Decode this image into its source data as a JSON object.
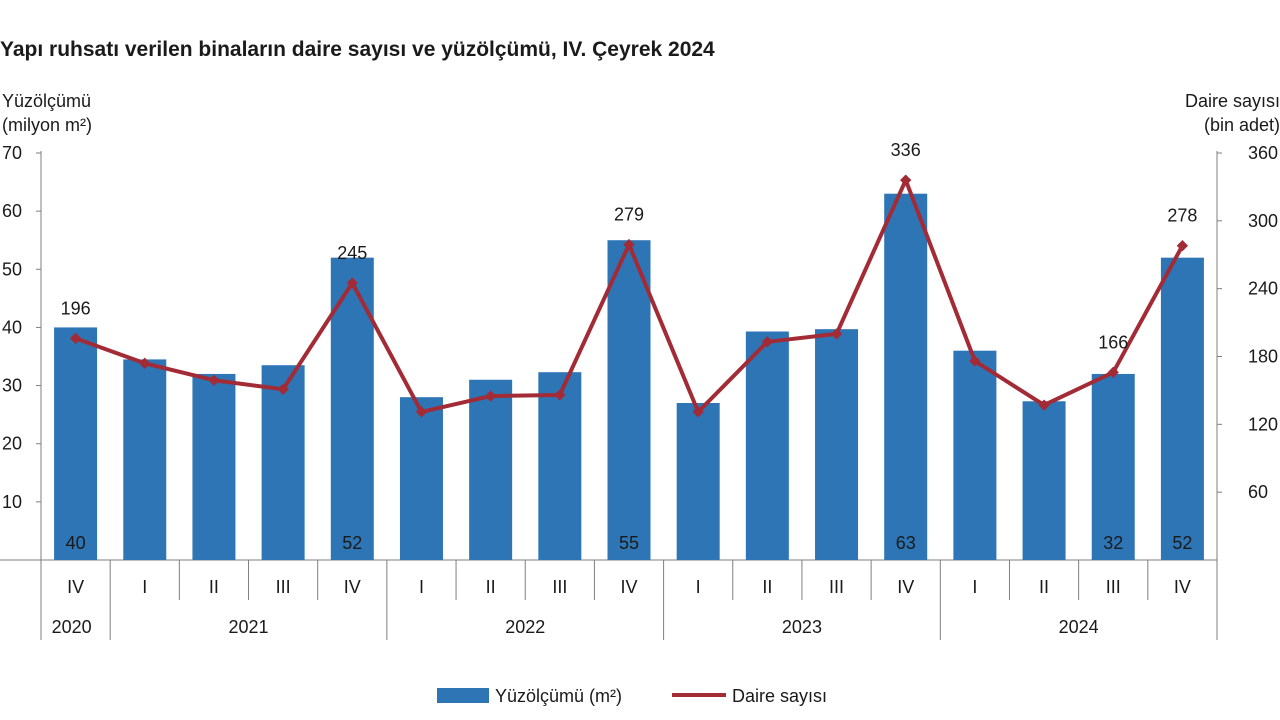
{
  "chart_data": {
    "type": "bar",
    "title": "Yapı ruhsatı verilen binaların daire sayısı ve yüzölçümü, IV. Çeyrek 2024",
    "ylabel_left": [
      "Yüzölçümü",
      "(milyon m²)"
    ],
    "ylabel_right": [
      "Daire sayısı",
      "(bin adet)"
    ],
    "ylim_left": [
      0,
      70
    ],
    "yticks_left": [
      10,
      20,
      30,
      40,
      50,
      60,
      70
    ],
    "ylim_right": [
      0,
      360
    ],
    "yticks_right": [
      60,
      120,
      180,
      240,
      300,
      360
    ],
    "quarters": [
      "IV",
      "I",
      "II",
      "III",
      "IV",
      "I",
      "II",
      "III",
      "IV",
      "I",
      "II",
      "III",
      "IV",
      "I",
      "II",
      "III",
      "IV"
    ],
    "years": [
      {
        "label": "2020",
        "span": 1
      },
      {
        "label": "2021",
        "span": 4
      },
      {
        "label": "2022",
        "span": 4
      },
      {
        "label": "2023",
        "span": 4
      },
      {
        "label": "2024",
        "span": 4
      }
    ],
    "series": [
      {
        "name": "Yüzölçümü (m²)",
        "type": "bar",
        "axis": "left",
        "values": [
          40,
          34.5,
          32,
          33.5,
          52,
          28,
          31,
          32.3,
          55,
          27,
          39.3,
          39.7,
          63,
          36,
          27.3,
          32,
          52
        ],
        "labels": [
          "40",
          "",
          "",
          "",
          "52",
          "",
          "",
          "",
          "55",
          "",
          "",
          "",
          "63",
          "",
          "",
          "32",
          "52"
        ]
      },
      {
        "name": "Daire sayısı",
        "type": "line",
        "axis": "right",
        "values": [
          196,
          174,
          159,
          151,
          245,
          131,
          145,
          146,
          279,
          131,
          193,
          200,
          336,
          176,
          137,
          166,
          278
        ],
        "labels": [
          "196",
          "",
          "",
          "",
          "245",
          "",
          "",
          "",
          "279",
          "",
          "",
          "",
          "336",
          "",
          "",
          "166",
          "278"
        ]
      }
    ],
    "colors": {
      "bar": "#2e75b6",
      "line": "#a32b35"
    },
    "legend_position": "bottom",
    "grid": false
  }
}
